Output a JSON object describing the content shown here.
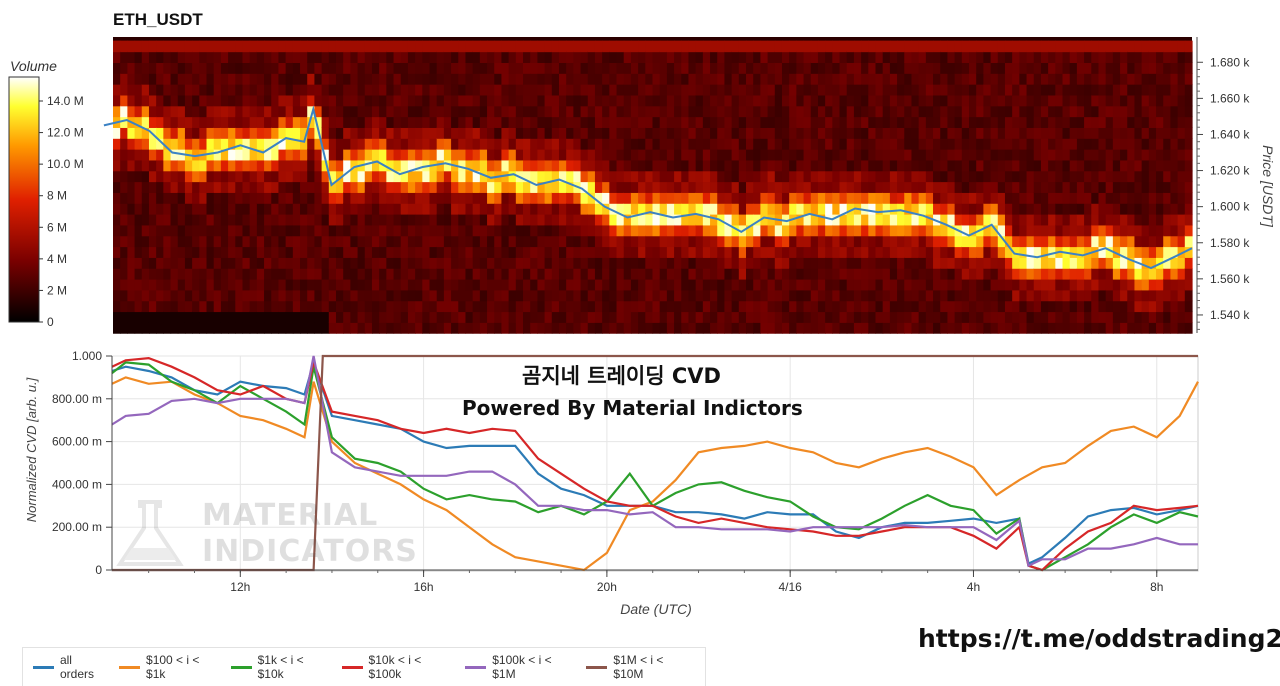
{
  "title": "ETH_USDT",
  "heatmap": {
    "colorbar_label": "Volume",
    "colorbar_ticks": [
      "14.0 M",
      "12.0 M",
      "10.0 M",
      "8 M",
      "6 M",
      "4 M",
      "2 M",
      "0"
    ],
    "price_axis_label": "Price [USDT]",
    "price_ticks": [
      "1.680 k",
      "1.660 k",
      "1.640 k",
      "1.620 k",
      "1.600 k",
      "1.580 k",
      "1.560 k",
      "1.540 k"
    ]
  },
  "overlay": {
    "line1": "곰지네 트레이딩 CVD",
    "line2": "Powered By Material Indictors"
  },
  "watermark": {
    "line1": "MATERIAL",
    "line2": "INDICATORS"
  },
  "url": "https://t.me/oddstrading2",
  "chart_data": [
    {
      "type": "heatmap",
      "title": "ETH_USDT",
      "ylabel": "Price [USDT]",
      "ylim": [
        1530,
        1694
      ],
      "colorbar_label": "Volume",
      "colorbar_range": [
        0,
        15000000
      ],
      "price_line": {
        "color": "#3b82c4",
        "x_hours": [
          9,
          9.5,
          10,
          10.5,
          11,
          11.5,
          12,
          12.5,
          13,
          13.4,
          13.6,
          14,
          14.5,
          15,
          15.5,
          16,
          16.5,
          17,
          17.5,
          18,
          18.5,
          19,
          19.5,
          20,
          20.5,
          21,
          21.5,
          22,
          22.5,
          23,
          23.5,
          24,
          24.5,
          25,
          25.5,
          26,
          26.5,
          27,
          27.5,
          28,
          28.5,
          29,
          29.5,
          30,
          30.5,
          31,
          31.5,
          32,
          32.5,
          32.9
        ],
        "price": [
          1645,
          1648,
          1642,
          1630,
          1628,
          1630,
          1634,
          1630,
          1638,
          1636,
          1654,
          1612,
          1622,
          1625,
          1618,
          1622,
          1624,
          1621,
          1616,
          1618,
          1612,
          1615,
          1610,
          1600,
          1594,
          1597,
          1594,
          1596,
          1593,
          1586,
          1594,
          1592,
          1596,
          1593,
          1599,
          1597,
          1598,
          1595,
          1590,
          1584,
          1590,
          1574,
          1572,
          1575,
          1573,
          1577,
          1571,
          1566,
          1572,
          1577
        ]
      }
    },
    {
      "type": "line",
      "xlabel": "Date (UTC)",
      "ylabel": "Normalized CVD [arb. u.]",
      "ylim": [
        0,
        1.0
      ],
      "y_ticks": [
        "0",
        "200.00 m",
        "400.00 m",
        "600.00 m",
        "800.00 m",
        "1.000"
      ],
      "x_ticks": [
        {
          "label": "12h",
          "hour": 12
        },
        {
          "label": "16h",
          "hour": 16
        },
        {
          "label": "20h",
          "hour": 20
        },
        {
          "label": "4/16",
          "hour": 24
        },
        {
          "label": "4h",
          "hour": 28
        },
        {
          "label": "8h",
          "hour": 32
        }
      ],
      "x_range_hours": [
        9.2,
        32.9
      ],
      "series": [
        {
          "name": "all orders",
          "color": "#2c7bb6",
          "x": [
            9.2,
            9.5,
            10,
            10.5,
            11,
            11.5,
            12,
            12.5,
            13,
            13.4,
            13.6,
            14,
            14.5,
            15,
            15.5,
            16,
            16.5,
            17,
            17.5,
            18,
            18.5,
            19,
            19.5,
            20,
            20.5,
            21,
            21.5,
            22,
            22.5,
            23,
            23.5,
            24,
            24.5,
            25,
            25.5,
            26,
            26.5,
            27,
            27.5,
            28,
            28.5,
            29,
            29.2,
            29.5,
            30,
            30.5,
            31,
            31.5,
            32,
            32.5,
            32.9
          ],
          "y": [
            0.93,
            0.95,
            0.93,
            0.9,
            0.84,
            0.82,
            0.88,
            0.86,
            0.85,
            0.82,
            0.97,
            0.72,
            0.7,
            0.68,
            0.66,
            0.6,
            0.57,
            0.58,
            0.58,
            0.58,
            0.45,
            0.38,
            0.35,
            0.3,
            0.3,
            0.3,
            0.27,
            0.27,
            0.26,
            0.24,
            0.27,
            0.26,
            0.26,
            0.18,
            0.15,
            0.2,
            0.22,
            0.22,
            0.23,
            0.24,
            0.22,
            0.24,
            0.03,
            0.06,
            0.15,
            0.25,
            0.28,
            0.29,
            0.26,
            0.28,
            0.3
          ]
        },
        {
          "name": "$100 < i < $1k",
          "color": "#f08a24",
          "x": [
            9.2,
            9.5,
            10,
            10.5,
            11,
            11.5,
            12,
            12.5,
            13,
            13.4,
            13.6,
            14,
            14.5,
            15,
            15.5,
            16,
            16.5,
            17,
            17.5,
            18,
            18.5,
            19,
            19.5,
            20,
            20.5,
            21,
            21.5,
            22,
            22.5,
            23,
            23.5,
            24,
            24.5,
            25,
            25.5,
            26,
            26.5,
            27,
            27.5,
            28,
            28.5,
            29,
            29.5,
            30,
            30.5,
            31,
            31.5,
            32,
            32.5,
            32.9
          ],
          "y": [
            0.87,
            0.9,
            0.87,
            0.88,
            0.82,
            0.78,
            0.72,
            0.7,
            0.66,
            0.62,
            0.88,
            0.6,
            0.5,
            0.45,
            0.4,
            0.33,
            0.28,
            0.2,
            0.12,
            0.06,
            0.04,
            0.02,
            0.0,
            0.08,
            0.28,
            0.32,
            0.42,
            0.55,
            0.57,
            0.58,
            0.6,
            0.57,
            0.55,
            0.5,
            0.48,
            0.52,
            0.55,
            0.57,
            0.53,
            0.48,
            0.35,
            0.42,
            0.48,
            0.5,
            0.58,
            0.65,
            0.67,
            0.62,
            0.72,
            0.88
          ]
        },
        {
          "name": "$1k < i < $10k",
          "color": "#2ca02c",
          "x": [
            9.2,
            9.5,
            10,
            10.5,
            11,
            11.5,
            12,
            12.5,
            13,
            13.4,
            13.6,
            14,
            14.5,
            15,
            15.5,
            16,
            16.5,
            17,
            17.5,
            18,
            18.5,
            19,
            19.5,
            20,
            20.5,
            21,
            21.5,
            22,
            22.5,
            23,
            23.5,
            24,
            24.5,
            25,
            25.5,
            26,
            26.5,
            27,
            27.5,
            28,
            28.5,
            29,
            29.2,
            29.5,
            30,
            30.5,
            31,
            31.5,
            32,
            32.5,
            32.9
          ],
          "y": [
            0.92,
            0.97,
            0.96,
            0.88,
            0.84,
            0.78,
            0.86,
            0.8,
            0.74,
            0.68,
            0.95,
            0.62,
            0.52,
            0.5,
            0.46,
            0.38,
            0.33,
            0.35,
            0.33,
            0.32,
            0.27,
            0.3,
            0.26,
            0.32,
            0.45,
            0.3,
            0.36,
            0.4,
            0.41,
            0.37,
            0.34,
            0.32,
            0.25,
            0.2,
            0.19,
            0.24,
            0.3,
            0.35,
            0.3,
            0.28,
            0.17,
            0.24,
            0.02,
            0.0,
            0.06,
            0.12,
            0.2,
            0.26,
            0.22,
            0.27,
            0.25
          ]
        },
        {
          "name": "$10k < i < $100k",
          "color": "#d62728",
          "x": [
            9.2,
            9.5,
            10,
            10.5,
            11,
            11.5,
            12,
            12.5,
            13,
            13.4,
            13.6,
            14,
            14.5,
            15,
            15.5,
            16,
            16.5,
            17,
            17.5,
            18,
            18.5,
            19,
            19.5,
            20,
            20.5,
            21,
            21.5,
            22,
            22.5,
            23,
            23.5,
            24,
            24.5,
            25,
            25.5,
            26,
            26.5,
            27,
            27.5,
            28,
            28.5,
            29,
            29.2,
            29.5,
            30,
            30.5,
            31,
            31.5,
            32,
            32.5,
            32.9
          ],
          "y": [
            0.95,
            0.98,
            0.99,
            0.95,
            0.9,
            0.84,
            0.82,
            0.86,
            0.8,
            0.78,
            0.97,
            0.74,
            0.72,
            0.7,
            0.66,
            0.64,
            0.66,
            0.64,
            0.66,
            0.65,
            0.52,
            0.45,
            0.38,
            0.32,
            0.3,
            0.3,
            0.25,
            0.22,
            0.24,
            0.22,
            0.2,
            0.19,
            0.18,
            0.16,
            0.16,
            0.18,
            0.2,
            0.2,
            0.2,
            0.16,
            0.1,
            0.2,
            0.02,
            0.0,
            0.1,
            0.18,
            0.22,
            0.3,
            0.28,
            0.29,
            0.3
          ]
        },
        {
          "name": "$100k < i < $1M",
          "color": "#9467bd",
          "x": [
            9.2,
            9.5,
            10,
            10.5,
            11,
            11.5,
            12,
            12.5,
            13,
            13.4,
            13.6,
            14,
            14.5,
            15,
            15.5,
            16,
            16.5,
            17,
            17.5,
            18,
            18.5,
            19,
            19.5,
            20,
            20.5,
            21,
            21.5,
            22,
            22.5,
            23,
            23.5,
            24,
            24.5,
            25,
            25.5,
            26,
            26.5,
            27,
            27.5,
            28,
            28.5,
            29,
            29.2,
            29.5,
            30,
            30.5,
            31,
            31.5,
            32,
            32.5,
            32.9
          ],
          "y": [
            0.68,
            0.72,
            0.73,
            0.79,
            0.8,
            0.78,
            0.8,
            0.8,
            0.8,
            0.78,
            1.0,
            0.55,
            0.48,
            0.46,
            0.44,
            0.44,
            0.44,
            0.46,
            0.46,
            0.4,
            0.3,
            0.3,
            0.28,
            0.28,
            0.26,
            0.27,
            0.2,
            0.2,
            0.19,
            0.19,
            0.19,
            0.18,
            0.2,
            0.2,
            0.2,
            0.2,
            0.21,
            0.2,
            0.2,
            0.2,
            0.14,
            0.23,
            0.02,
            0.05,
            0.05,
            0.1,
            0.1,
            0.12,
            0.15,
            0.12,
            0.12
          ]
        },
        {
          "name": "$1M < i < $10M",
          "color": "#8c564b",
          "x": [
            9.2,
            13.4,
            13.6,
            13.8,
            14,
            20,
            24,
            28,
            32,
            32.9
          ],
          "y": [
            0.0,
            0.0,
            0.0,
            1.0,
            1.0,
            1.0,
            1.0,
            1.0,
            1.0,
            1.0
          ]
        }
      ]
    }
  ]
}
